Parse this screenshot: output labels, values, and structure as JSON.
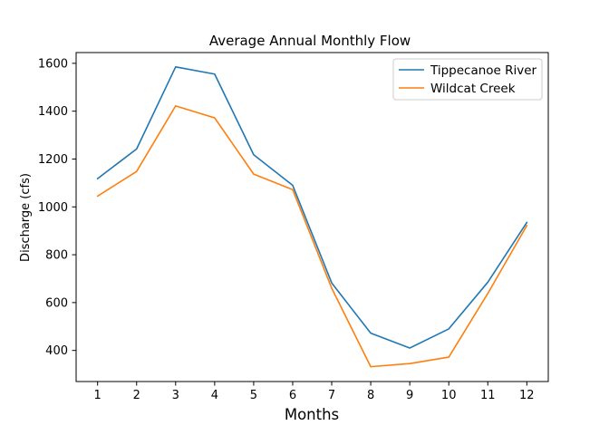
{
  "chart_data": {
    "type": "line",
    "title": "Average Annual Monthly Flow",
    "xlabel": "Months",
    "ylabel": "Discharge (cfs)",
    "x": [
      1,
      2,
      3,
      4,
      5,
      6,
      7,
      8,
      9,
      10,
      11,
      12
    ],
    "xticks": [
      1,
      2,
      3,
      4,
      5,
      6,
      7,
      8,
      9,
      10,
      11,
      12
    ],
    "yticks": [
      400,
      600,
      800,
      1000,
      1200,
      1400,
      1600
    ],
    "xlim": [
      0.45,
      12.55
    ],
    "ylim": [
      270,
      1645
    ],
    "grid": false,
    "legend_position": "upper right",
    "series": [
      {
        "name": "Tippecanoe River",
        "color": "#1f77b4",
        "values": [
          1118,
          1242,
          1585,
          1555,
          1218,
          1090,
          682,
          472,
          410,
          490,
          685,
          935
        ]
      },
      {
        "name": "Wildcat Creek",
        "color": "#ff7f0e",
        "values": [
          1045,
          1148,
          1422,
          1372,
          1137,
          1072,
          660,
          332,
          345,
          372,
          638,
          922
        ]
      }
    ]
  }
}
